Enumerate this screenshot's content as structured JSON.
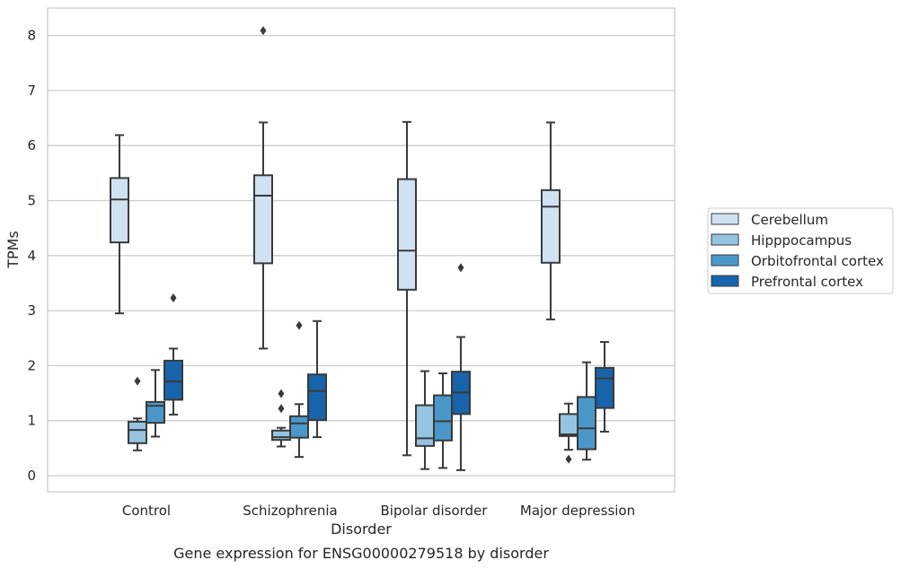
{
  "caption": "Gene expression for ENSG00000279518 by disorder",
  "chart_data": {
    "type": "box",
    "xlabel": "Disorder",
    "ylabel": "TPMs",
    "ylim": [
      -0.3,
      8.5
    ],
    "yticks": [
      0,
      1,
      2,
      3,
      4,
      5,
      6,
      7,
      8
    ],
    "grid": true,
    "legend_position": "right",
    "categories": [
      "Control",
      "Schizophrenia",
      "Bipolar disorder",
      "Major depression"
    ],
    "series": [
      {
        "name": "Cerebellum",
        "color": "#d0e1f2",
        "boxes": [
          {
            "whislo": 2.95,
            "q1": 4.24,
            "med": 5.02,
            "q3": 5.41,
            "whishi": 6.19,
            "fliers": []
          },
          {
            "whislo": 2.31,
            "q1": 3.86,
            "med": 5.09,
            "q3": 5.46,
            "whishi": 6.42,
            "fliers": [
              8.09
            ]
          },
          {
            "whislo": 0.37,
            "q1": 3.38,
            "med": 4.09,
            "q3": 5.39,
            "whishi": 6.43,
            "fliers": []
          },
          {
            "whislo": 2.84,
            "q1": 3.87,
            "med": 4.89,
            "q3": 5.19,
            "whishi": 6.42,
            "fliers": []
          }
        ]
      },
      {
        "name": "Hipppocampus",
        "color": "#94c4df",
        "boxes": [
          {
            "whislo": 0.46,
            "q1": 0.59,
            "med": 0.83,
            "q3": 0.98,
            "whishi": 1.04,
            "fliers": [
              1.72
            ]
          },
          {
            "whislo": 0.53,
            "q1": 0.65,
            "med": 0.7,
            "q3": 0.82,
            "whishi": 0.87,
            "fliers": [
              1.22,
              1.49
            ]
          },
          {
            "whislo": 0.12,
            "q1": 0.54,
            "med": 0.68,
            "q3": 1.28,
            "whishi": 1.9,
            "fliers": []
          },
          {
            "whislo": 0.47,
            "q1": 0.72,
            "med": 0.75,
            "q3": 1.12,
            "whishi": 1.31,
            "fliers": [
              0.3
            ]
          }
        ]
      },
      {
        "name": "Orbitofrontal cortex",
        "color": "#4a98c9",
        "boxes": [
          {
            "whislo": 0.71,
            "q1": 0.96,
            "med": 1.27,
            "q3": 1.34,
            "whishi": 1.92,
            "fliers": []
          },
          {
            "whislo": 0.34,
            "q1": 0.69,
            "med": 0.95,
            "q3": 1.08,
            "whishi": 1.3,
            "fliers": [
              2.73
            ]
          },
          {
            "whislo": 0.14,
            "q1": 0.64,
            "med": 0.99,
            "q3": 1.46,
            "whishi": 1.86,
            "fliers": []
          },
          {
            "whislo": 0.29,
            "q1": 0.48,
            "med": 0.86,
            "q3": 1.43,
            "whishi": 2.06,
            "fliers": []
          }
        ]
      },
      {
        "name": "Prefrontal cortex",
        "color": "#1764ab",
        "boxes": [
          {
            "whislo": 1.11,
            "q1": 1.38,
            "med": 1.71,
            "q3": 2.09,
            "whishi": 2.31,
            "fliers": [
              3.23
            ]
          },
          {
            "whislo": 0.7,
            "q1": 1.01,
            "med": 1.54,
            "q3": 1.84,
            "whishi": 2.81,
            "fliers": []
          },
          {
            "whislo": 0.1,
            "q1": 1.12,
            "med": 1.51,
            "q3": 1.89,
            "whishi": 2.52,
            "fliers": [
              3.78
            ]
          },
          {
            "whislo": 0.8,
            "q1": 1.23,
            "med": 1.77,
            "q3": 1.96,
            "whishi": 2.43,
            "fliers": []
          }
        ]
      }
    ]
  }
}
